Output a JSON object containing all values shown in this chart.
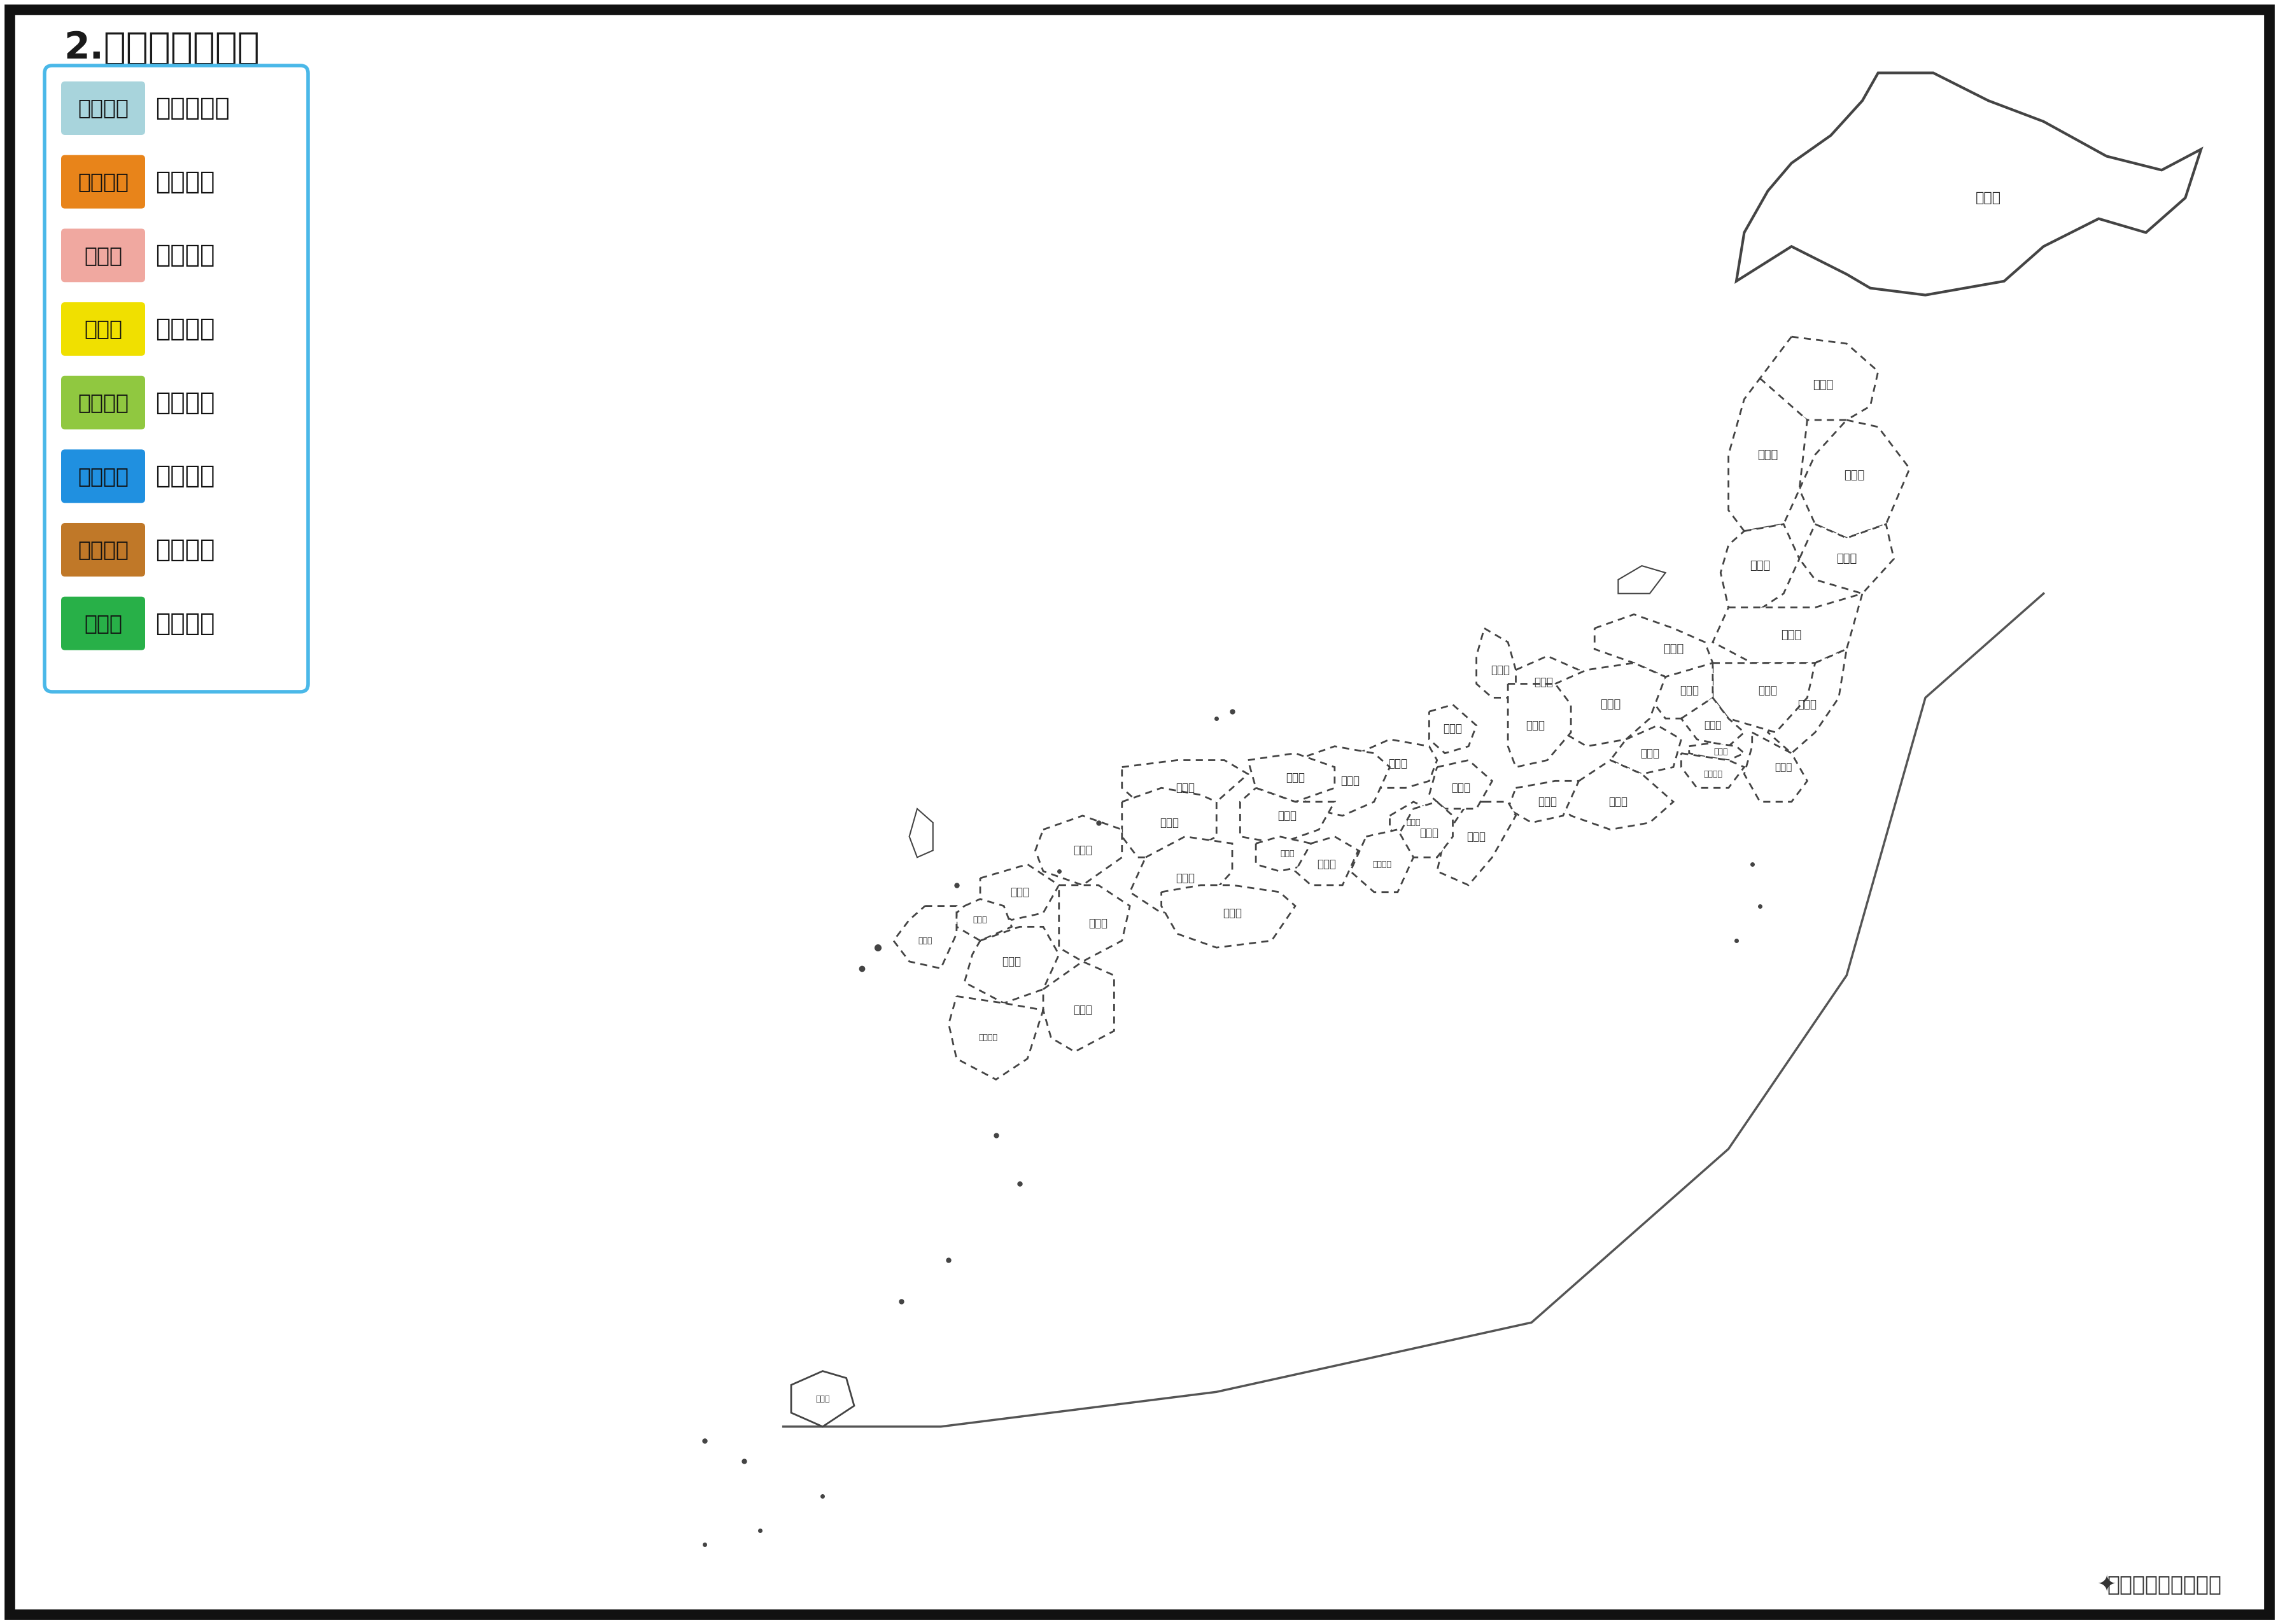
{
  "title": "2.地方区分ぬり絵",
  "title_fontsize": 42,
  "title_color": "#1a1a1a",
  "background_color": "#ffffff",
  "border_color": "#111111",
  "legend_border_color": "#4ab8e8",
  "legend_items": [
    {
      "color_label": "みずいろ",
      "region_label": "北海道地方",
      "color": "#a8d4dc"
    },
    {
      "color_label": "オレンジ",
      "region_label": "東北地方",
      "color": "#e8841a"
    },
    {
      "color_label": "ピンク",
      "region_label": "関東地方",
      "color": "#f0a8a0"
    },
    {
      "color_label": "きいろ",
      "region_label": "中部地方",
      "color": "#f0e000"
    },
    {
      "color_label": "きみどり",
      "region_label": "近畿地方",
      "color": "#90c840"
    },
    {
      "color_label": "あおいろ",
      "region_label": "中国地方",
      "color": "#2090e0"
    },
    {
      "color_label": "ちゃいろ",
      "region_label": "四国地方",
      "color": "#c07828"
    },
    {
      "color_label": "みどり",
      "region_label": "九州地方",
      "color": "#28b048"
    }
  ],
  "watermark": "地図・路線図職工所",
  "map_outline_color": "#444444",
  "map_fill_color": "#ffffff",
  "map_dashed_color": "#999999"
}
